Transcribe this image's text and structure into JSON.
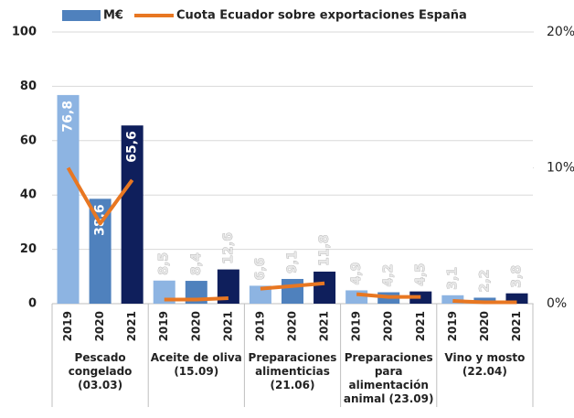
{
  "chart_data": {
    "type": "bar",
    "categories": [
      "Pescado congelado (03.03)",
      "Aceite de oliva (15.09)",
      "Preparaciones alimenticias (21.06)",
      "Preparaciones para alimentación animal (23.09)",
      "Vino y mosto (22.04)"
    ],
    "subcategories": [
      "2019",
      "2020",
      "2021"
    ],
    "subcategory_colors": [
      "#8db4e2",
      "#4f81bd",
      "#0f1f5c"
    ],
    "series": [
      {
        "name": "M€",
        "color": "#4f81bd",
        "values": [
          [
            76.8,
            38.6,
            65.6
          ],
          [
            8.5,
            8.4,
            12.6
          ],
          [
            6.6,
            9.1,
            11.8
          ],
          [
            4.9,
            4.2,
            4.5
          ],
          [
            3.1,
            2.2,
            3.8
          ]
        ],
        "value_labels": [
          [
            "76,8",
            "38,6",
            "65,6"
          ],
          [
            "8,5",
            "8,4",
            "12,6"
          ],
          [
            "6,6",
            "9,1",
            "11,8"
          ],
          [
            "4,9",
            "4,2",
            "4,5"
          ],
          [
            "3,1",
            "2,2",
            "3,8"
          ]
        ]
      },
      {
        "name": "Cuota Ecuador sobre exportaciones España",
        "type": "line",
        "axis": "y2",
        "color": "#e87722",
        "values": [
          [
            10,
            5.9,
            9.1
          ],
          [
            0.3,
            0.3,
            0.4
          ],
          [
            1.1,
            1.3,
            1.5
          ],
          [
            0.7,
            0.5,
            0.5
          ],
          [
            0.2,
            0.1,
            0.1
          ]
        ]
      }
    ],
    "ylim": [
      0,
      100
    ],
    "yticks": [
      0,
      20,
      40,
      60,
      80,
      100
    ],
    "y2lim": [
      0,
      20
    ],
    "y2ticks": [
      {
        "value": 0,
        "label": "0%"
      },
      {
        "value": 10,
        "label": "10%"
      },
      {
        "value": 20,
        "label": "20%"
      }
    ],
    "grid": true
  }
}
